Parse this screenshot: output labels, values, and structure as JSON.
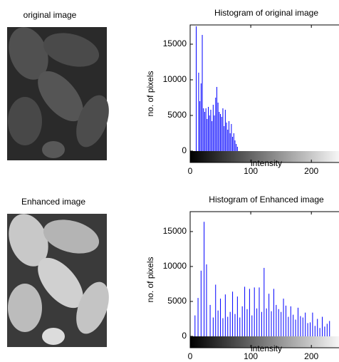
{
  "images": [
    {
      "title": "original image"
    },
    {
      "title": "Enhanced image"
    }
  ],
  "chart_data": [
    {
      "type": "stem",
      "title": "Histogram of original image",
      "xlabel": "intensity",
      "ylabel": "no. of pixels",
      "xlim": [
        0,
        255
      ],
      "ylim": [
        -1600,
        17700
      ],
      "xticks": [
        0,
        100,
        200
      ],
      "yticks": [
        0,
        5000,
        10000,
        15000
      ],
      "color": "#0000ff",
      "x": [
        10,
        14,
        16,
        18,
        20,
        22,
        24,
        26,
        28,
        30,
        32,
        34,
        36,
        38,
        40,
        42,
        44,
        46,
        48,
        50,
        52,
        54,
        56,
        58,
        60,
        62,
        64,
        66,
        68,
        70,
        72,
        74,
        76,
        78
      ],
      "values": [
        17500,
        11000,
        7000,
        9500,
        16300,
        6000,
        5500,
        6000,
        4500,
        6200,
        5000,
        5800,
        4200,
        6500,
        5000,
        7500,
        9000,
        6800,
        5500,
        5200,
        4800,
        6000,
        3500,
        5800,
        4000,
        3000,
        4200,
        2500,
        3800,
        2000,
        2500,
        1500,
        1000,
        600
      ]
    },
    {
      "type": "stem",
      "title": "Histogram of Enhanced image",
      "xlabel": "intensity",
      "ylabel": "no. of pixels",
      "xlim": [
        0,
        255
      ],
      "ylim": [
        -1630,
        17850
      ],
      "xticks": [
        0,
        100,
        200
      ],
      "yticks": [
        0,
        5000,
        10000,
        15000
      ],
      "color": "#0000ff",
      "x": [
        8,
        13,
        18,
        23,
        27,
        33,
        38,
        42,
        46,
        50,
        54,
        58,
        62,
        66,
        70,
        74,
        78,
        82,
        86,
        90,
        94,
        98,
        102,
        106,
        110,
        114,
        118,
        122,
        126,
        130,
        134,
        138,
        142,
        146,
        150,
        154,
        158,
        162,
        166,
        170,
        174,
        178,
        182,
        186,
        190,
        194,
        198,
        202,
        206,
        210,
        214,
        218,
        222,
        226,
        230
      ],
      "values": [
        3000,
        5500,
        9400,
        16400,
        10300,
        4500,
        2700,
        7400,
        3700,
        5400,
        2600,
        6000,
        2800,
        3500,
        6400,
        3200,
        5700,
        2700,
        4300,
        7100,
        3900,
        6800,
        3000,
        7000,
        4000,
        7000,
        3500,
        9800,
        4000,
        6100,
        3600,
        6800,
        4500,
        3900,
        3500,
        5400,
        4400,
        2800,
        4300,
        3100,
        2400,
        4100,
        2900,
        2700,
        3400,
        1900,
        2000,
        3400,
        1500,
        2500,
        1200,
        2800,
        1400,
        1800,
        2200
      ]
    }
  ]
}
